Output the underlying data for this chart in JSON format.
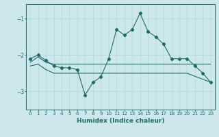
{
  "xlabel": "Humidex (Indice chaleur)",
  "bg_color": "#cce8ec",
  "line_color": "#1e6b62",
  "grid_color": "#b8d8dc",
  "xlim": [
    -0.5,
    23.5
  ],
  "ylim": [
    -3.5,
    -0.6
  ],
  "yticks": [
    -3,
    -2,
    -1
  ],
  "xticks": [
    0,
    1,
    2,
    3,
    4,
    5,
    6,
    7,
    8,
    9,
    10,
    11,
    12,
    13,
    14,
    15,
    16,
    17,
    18,
    19,
    20,
    21,
    22,
    23
  ],
  "line1_x": [
    0,
    1,
    2,
    3,
    4,
    5,
    6,
    7,
    8,
    9,
    10,
    11,
    12,
    13,
    14,
    15,
    16,
    17,
    18,
    19,
    20,
    21,
    22,
    23
  ],
  "line1_y": [
    -2.1,
    -2.0,
    -2.15,
    -2.3,
    -2.35,
    -2.35,
    -2.4,
    -3.1,
    -2.75,
    -2.6,
    -2.1,
    -1.3,
    -1.45,
    -1.3,
    -0.85,
    -1.35,
    -1.5,
    -1.7,
    -2.1,
    -2.1,
    -2.1,
    -2.3,
    -2.5,
    -2.75
  ],
  "line2_x": [
    0,
    1,
    2,
    3,
    10,
    23
  ],
  "line2_y": [
    -2.2,
    -2.05,
    -2.2,
    -2.25,
    -2.25,
    -2.25
  ],
  "line3_x": [
    0,
    1,
    2,
    3,
    10,
    20,
    23
  ],
  "line3_y": [
    -2.3,
    -2.25,
    -2.4,
    -2.5,
    -2.5,
    -2.5,
    -2.75
  ]
}
